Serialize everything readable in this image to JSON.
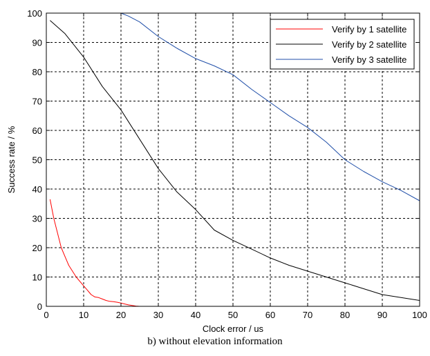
{
  "chart_data": {
    "type": "line",
    "title": "",
    "xlabel": "Clock error / us",
    "ylabel": "Success rate / %",
    "xlim": [
      0,
      100
    ],
    "ylim": [
      0,
      100
    ],
    "xticks": [
      0,
      10,
      20,
      30,
      40,
      50,
      60,
      70,
      80,
      90,
      100
    ],
    "yticks": [
      0,
      10,
      20,
      30,
      40,
      50,
      60,
      70,
      80,
      90,
      100
    ],
    "grid": true,
    "legend_position": "top-right",
    "series": [
      {
        "name": "Verify by 1 satellite",
        "color": "#ff0000",
        "x": [
          1,
          2,
          3,
          4,
          5,
          6,
          7,
          8,
          9,
          10,
          11,
          12,
          13,
          14,
          15,
          16,
          17,
          18,
          19,
          20,
          21,
          22,
          23,
          24,
          25,
          30,
          40,
          50,
          60,
          70,
          80,
          90,
          100
        ],
        "y": [
          36.5,
          30,
          25,
          20,
          17,
          14,
          12,
          10,
          8.5,
          7,
          5.5,
          4,
          3.2,
          3,
          2.5,
          2,
          1.7,
          1.6,
          1.4,
          1.1,
          0.8,
          0.5,
          0.3,
          0.1,
          0,
          0,
          0,
          0,
          0,
          0,
          0,
          0,
          0
        ]
      },
      {
        "name": "Verify by 2 satellite",
        "color": "#000000",
        "x": [
          1,
          5,
          10,
          15,
          20,
          25,
          30,
          35,
          40,
          45,
          50,
          55,
          60,
          65,
          70,
          75,
          80,
          85,
          90,
          95,
          100
        ],
        "y": [
          97.5,
          93,
          85,
          75,
          67,
          57,
          47,
          39,
          33,
          26,
          22.5,
          19.5,
          16.5,
          14,
          12,
          10,
          8,
          6,
          4,
          3,
          2
        ]
      },
      {
        "name": "Verify by 3 satellite",
        "color": "#1f4ea8",
        "x": [
          1,
          5,
          10,
          15,
          20,
          22,
          25,
          30,
          35,
          40,
          45,
          50,
          55,
          60,
          65,
          70,
          75,
          80,
          85,
          90,
          95,
          100
        ],
        "y": [
          100,
          100,
          100,
          100,
          100,
          99,
          97,
          92,
          88,
          84.5,
          82,
          79,
          74,
          69.5,
          65,
          61,
          56,
          50,
          46,
          42.5,
          39.5,
          36
        ]
      }
    ]
  },
  "caption": "b) without elevation information"
}
